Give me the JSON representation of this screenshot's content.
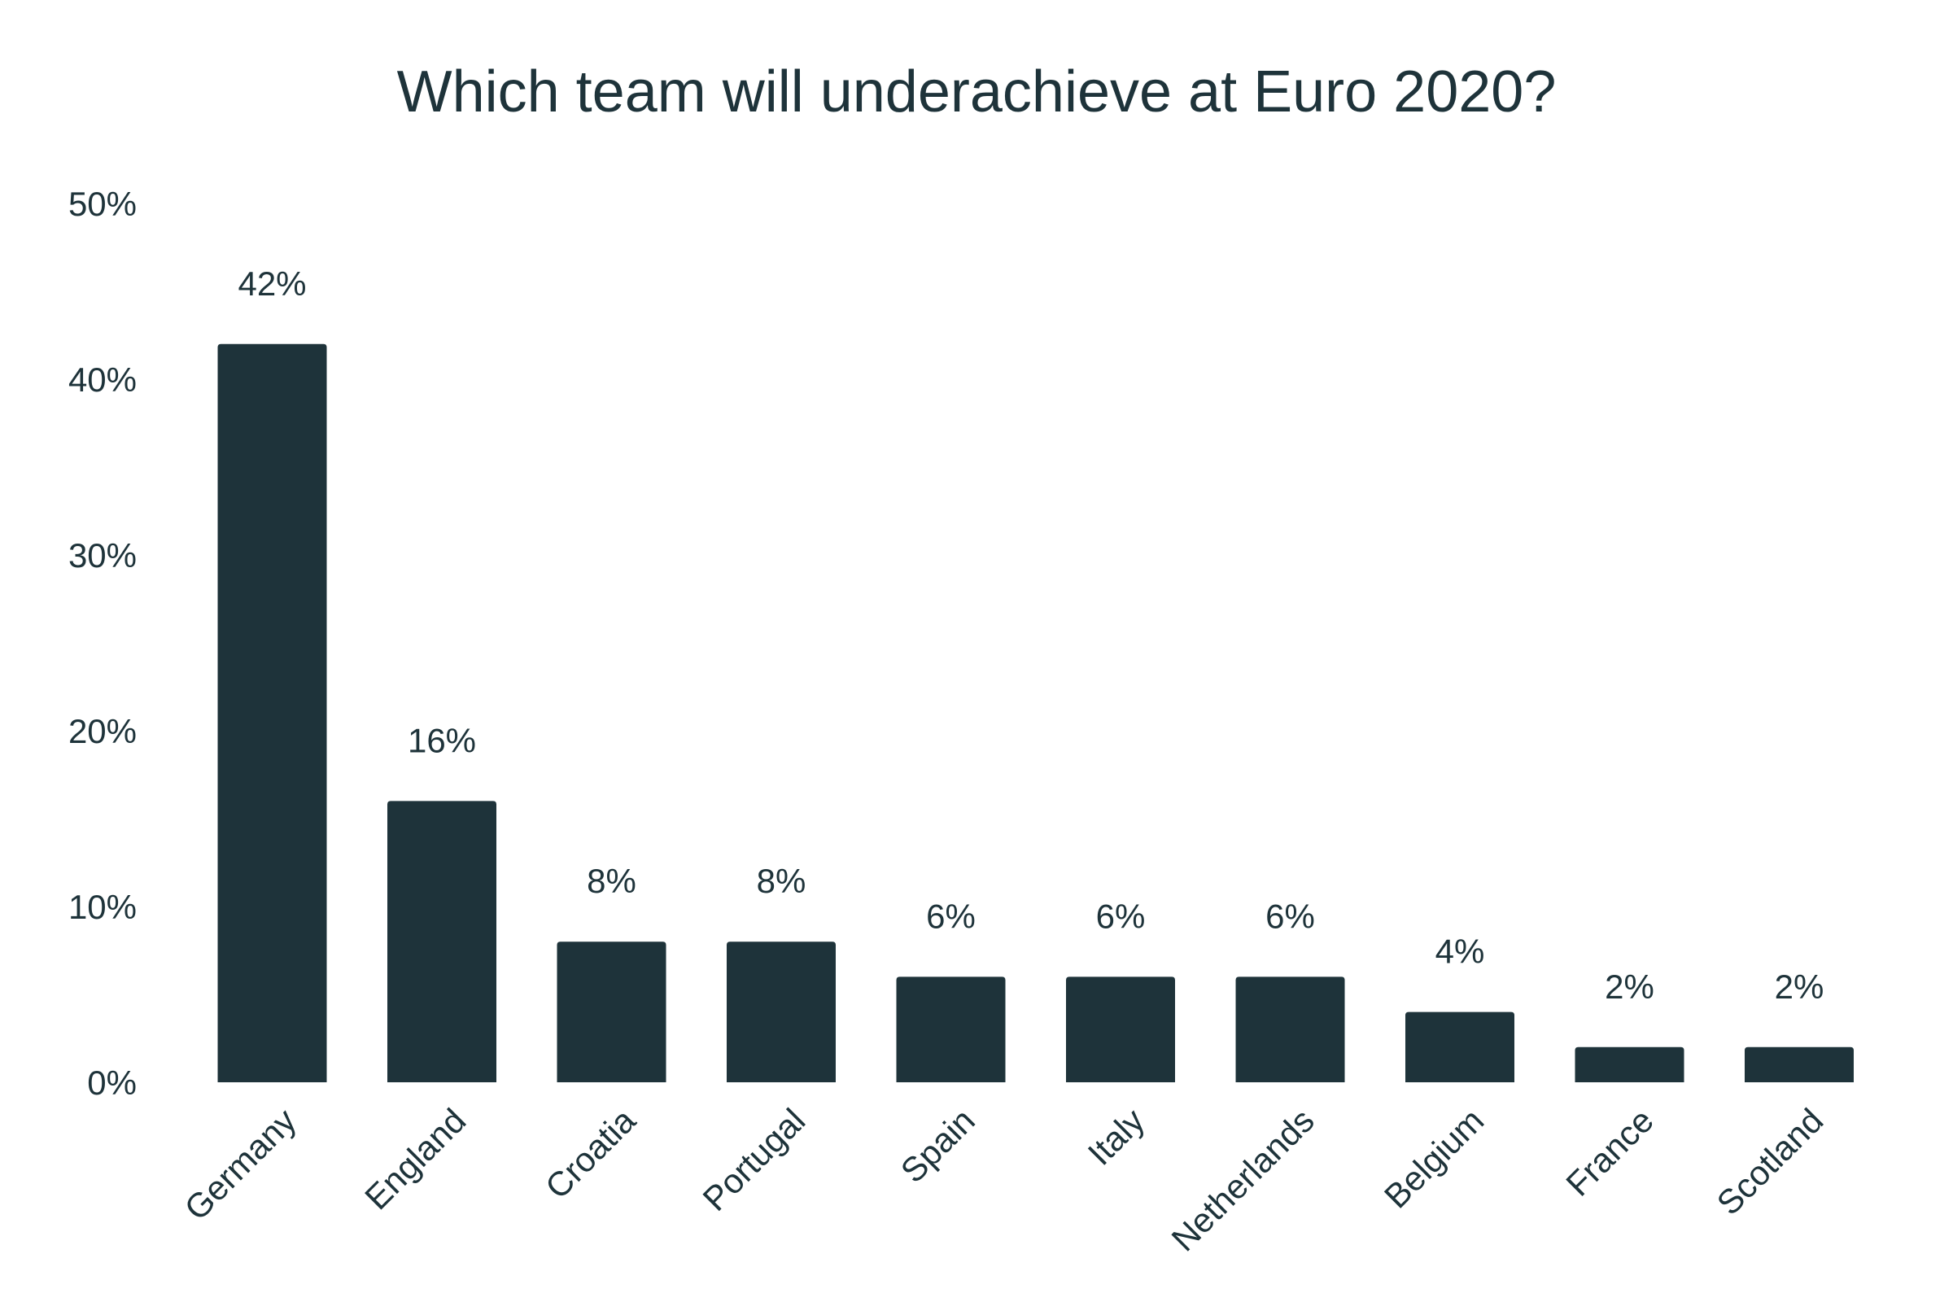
{
  "chart_data": {
    "type": "bar",
    "title": "Which team will underachieve at Euro 2020?",
    "xlabel": "",
    "ylabel": "",
    "categories": [
      "Germany",
      "England",
      "Croatia",
      "Portugal",
      "Spain",
      "Italy",
      "Netherlands",
      "Belgium",
      "France",
      "Scotland"
    ],
    "values": [
      42,
      16,
      8,
      8,
      6,
      6,
      6,
      4,
      2,
      2
    ],
    "value_labels": [
      "42%",
      "16%",
      "8%",
      "8%",
      "6%",
      "6%",
      "6%",
      "4%",
      "2%",
      "2%"
    ],
    "ylim": [
      0,
      50
    ],
    "yticks": [
      0,
      10,
      20,
      30,
      40,
      50
    ],
    "ytick_labels": [
      "0%",
      "10%",
      "20%",
      "30%",
      "40%",
      "50%"
    ],
    "grid": false,
    "legend": "none",
    "colors": {
      "bar": "#1e333a",
      "text": "#1e333a",
      "background": "#ffffff"
    }
  }
}
